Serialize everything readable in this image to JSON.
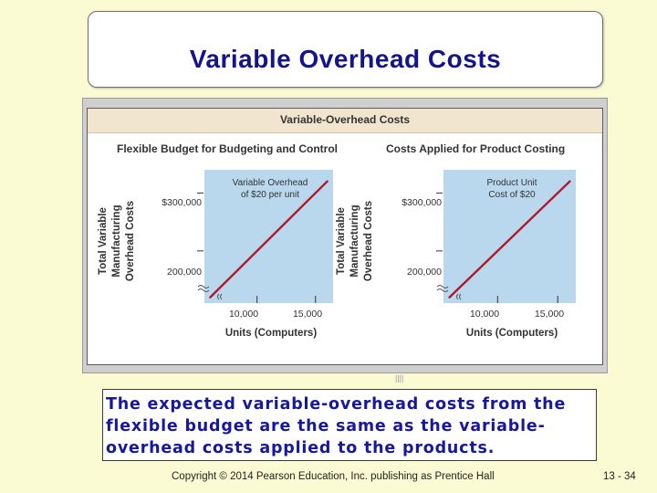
{
  "slide": {
    "title": "Variable Overhead Costs",
    "body_text": "The expected variable-overhead costs from the flexible budget are the same as the variable-overhead costs applied to the products.",
    "footer": "Copyright © 2014 Pearson Education, Inc. publishing as Prentice Hall",
    "page_number": "13 - 34"
  },
  "figure": {
    "title": "Variable-Overhead Costs"
  },
  "chart_data": [
    {
      "type": "line",
      "title": "Flexible Budget for Budgeting and Control",
      "annotation_line1": "Variable Overhead",
      "annotation_line2": "of $20 per unit",
      "xlabel": "Units (Computers)",
      "ylabel_line1": "Total Variable",
      "ylabel_line2": "Manufacturing",
      "ylabel_line3": "Overhead Costs",
      "x_ticks": [
        "10,000",
        "15,000"
      ],
      "y_ticks": [
        "$300,000",
        "200,000"
      ],
      "x_tick_values": [
        10000,
        15000
      ],
      "y_tick_values": [
        300000,
        200000
      ],
      "axis_break": true,
      "color": "#b0192b",
      "background": "#b9d8ee",
      "x": [
        6000,
        16000
      ],
      "y": [
        120000,
        320000
      ],
      "xlim": [
        5500,
        16500
      ],
      "ylim": [
        110000,
        340000
      ]
    },
    {
      "type": "line",
      "title": "Costs Applied for Product Costing",
      "annotation_line1": "Product Unit",
      "annotation_line2": "Cost of $20",
      "xlabel": "Units (Computers)",
      "ylabel_line1": "Total Variable",
      "ylabel_line2": "Manufacturing",
      "ylabel_line3": "Overhead Costs",
      "x_ticks": [
        "10,000",
        "15,000"
      ],
      "y_ticks": [
        "$300,000",
        "200,000"
      ],
      "x_tick_values": [
        10000,
        15000
      ],
      "y_tick_values": [
        300000,
        200000
      ],
      "axis_break": true,
      "color": "#b0192b",
      "background": "#b9d8ee",
      "x": [
        6000,
        16000
      ],
      "y": [
        120000,
        320000
      ],
      "xlim": [
        5500,
        16500
      ],
      "ylim": [
        110000,
        340000
      ]
    }
  ]
}
